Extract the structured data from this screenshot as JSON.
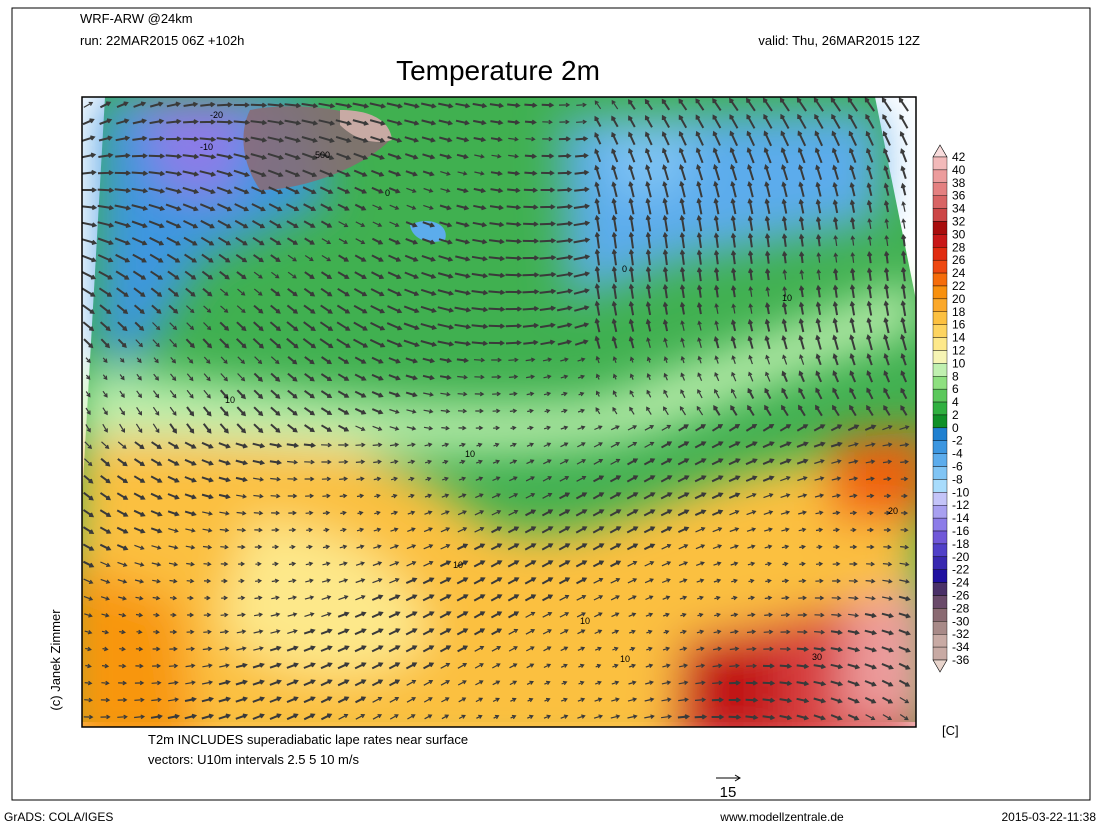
{
  "header": {
    "model": "WRF-ARW @24km",
    "run": "run: 22MAR2015 06Z +102h",
    "valid": "valid: Thu, 26MAR2015 12Z",
    "title": "Temperature 2m"
  },
  "credit": "(c) Janek Zimmer",
  "notes": [
    "T2m INCLUDES superadiabatic lape rates near surface",
    "vectors: U10m intervals 2.5 5 10 m/s"
  ],
  "vector_scale": "15",
  "colorbar": {
    "unit": "[C]",
    "levels": [
      "42",
      "40",
      "38",
      "36",
      "34",
      "32",
      "30",
      "28",
      "26",
      "24",
      "22",
      "20",
      "18",
      "16",
      "14",
      "12",
      "10",
      "8",
      "6",
      "4",
      "2",
      "0",
      "-2",
      "-4",
      "-6",
      "-8",
      "-10",
      "-12",
      "-14",
      "-16",
      "-18",
      "-20",
      "-22",
      "-24",
      "-26",
      "-28",
      "-30",
      "-32",
      "-34",
      "-36"
    ],
    "colors": [
      "#f8dcdc",
      "#f2baba",
      "#ec9c9c",
      "#e48080",
      "#d86464",
      "#cc4646",
      "#a80c0c",
      "#c81818",
      "#e02c10",
      "#ee4810",
      "#f56c0a",
      "#f8900e",
      "#fba82a",
      "#fcc040",
      "#fdd460",
      "#fde88a",
      "#f6f4b4",
      "#c0f0b0",
      "#8ee080",
      "#5cc85c",
      "#30b040",
      "#109028",
      "#2080d0",
      "#3c96e0",
      "#5cacec",
      "#80c4f4",
      "#a8dcfc",
      "#c4c4f8",
      "#a8a0f0",
      "#8c7ce8",
      "#7058d8",
      "#5040c8",
      "#3828b0",
      "#2010a0",
      "#4a3068",
      "#6a4a6a",
      "#8a6a72",
      "#a88a88",
      "#c8aaa4",
      "#e8d4cc"
    ]
  },
  "contour_labels": [
    "-20",
    "-10",
    "500",
    "0",
    "0",
    "10",
    "10",
    "10",
    "10",
    "10",
    "10",
    "20",
    "30"
  ],
  "footer": {
    "left": "GrADS: COLA/IGES",
    "center": "www.modellzentrale.de",
    "right": "2015-03-22-11:38"
  }
}
